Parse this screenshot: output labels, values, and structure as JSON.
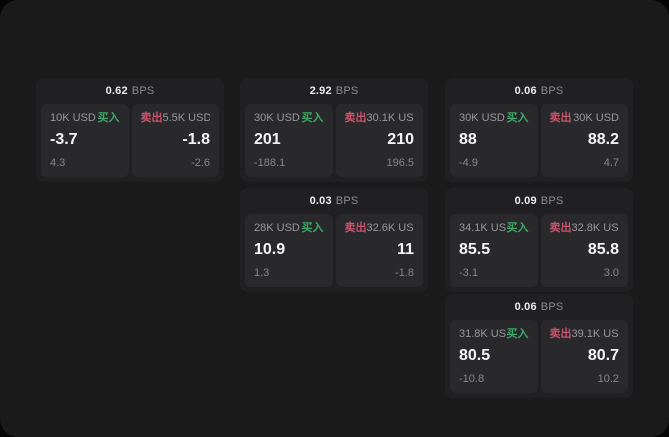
{
  "labels": {
    "bps": "BPS",
    "buy": "买入",
    "sell": "卖出"
  },
  "colors": {
    "background": "#1a1a1b",
    "card": "#202022",
    "panel": "#29292b",
    "buy": "#3ea768",
    "sell": "#c9536b"
  },
  "cards": [
    {
      "bps": "0.62",
      "buy": {
        "amount": "10K USD",
        "price": "-3.7",
        "change": "4.3"
      },
      "sell": {
        "amount": "5.5K USD",
        "price": "-1.8",
        "change": "-2.6"
      }
    },
    {
      "bps": "2.92",
      "buy": {
        "amount": "30K USD",
        "price": "201",
        "change": "-188.1"
      },
      "sell": {
        "amount": "30.1K USD",
        "price": "210",
        "change": "196.5"
      }
    },
    {
      "bps": "0.06",
      "buy": {
        "amount": "30K USD",
        "price": "88",
        "change": "-4.9"
      },
      "sell": {
        "amount": "30K USD",
        "price": "88.2",
        "change": "4.7"
      }
    },
    {
      "bps": "0.03",
      "buy": {
        "amount": "28K USD",
        "price": "10.9",
        "change": "1.3"
      },
      "sell": {
        "amount": "32.6K USD",
        "price": "11",
        "change": "-1.8"
      }
    },
    {
      "bps": "0.09",
      "buy": {
        "amount": "34.1K USD",
        "price": "85.5",
        "change": "-3.1"
      },
      "sell": {
        "amount": "32.8K USD",
        "price": "85.8",
        "change": "3.0"
      }
    },
    {
      "bps": "0.06",
      "buy": {
        "amount": "31.8K USD",
        "price": "80.5",
        "change": "-10.8"
      },
      "sell": {
        "amount": "39.1K USD",
        "price": "80.7",
        "change": "10.2"
      }
    }
  ]
}
